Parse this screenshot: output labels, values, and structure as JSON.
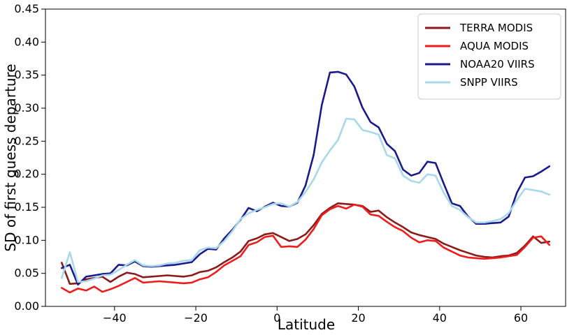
{
  "chart_data": {
    "type": "line",
    "title": "",
    "xlabel": "Latitude",
    "ylabel": "SD of first guess departure",
    "xlim": [
      -57,
      71
    ],
    "ylim": [
      0.0,
      0.45
    ],
    "xticks": [
      -40,
      -20,
      0,
      20,
      40,
      60
    ],
    "xtick_labels": [
      "−40",
      "−20",
      "0",
      "20",
      "40",
      "60"
    ],
    "yticks": [
      0.0,
      0.05,
      0.1,
      0.15,
      0.2,
      0.25,
      0.3,
      0.35,
      0.4,
      0.45
    ],
    "ytick_labels": [
      "0.00",
      "0.05",
      "0.10",
      "0.15",
      "0.20",
      "0.25",
      "0.30",
      "0.35",
      "0.40",
      "0.45"
    ],
    "grid": false,
    "legend_position": "top-right",
    "series": [
      {
        "name": "TERRA MODIS",
        "color": "#8b1a1a",
        "points": [
          [
            -53,
            0.066
          ],
          [
            -51,
            0.034
          ],
          [
            -49,
            0.035
          ],
          [
            -47,
            0.041
          ],
          [
            -45,
            0.043
          ],
          [
            -43,
            0.045
          ],
          [
            -41,
            0.037
          ],
          [
            -39,
            0.045
          ],
          [
            -37,
            0.051
          ],
          [
            -35,
            0.049
          ],
          [
            -33,
            0.044
          ],
          [
            -31,
            0.045
          ],
          [
            -29,
            0.046
          ],
          [
            -27,
            0.047
          ],
          [
            -25,
            0.046
          ],
          [
            -23,
            0.045
          ],
          [
            -21,
            0.047
          ],
          [
            -19,
            0.052
          ],
          [
            -17,
            0.054
          ],
          [
            -15,
            0.059
          ],
          [
            -13,
            0.067
          ],
          [
            -11,
            0.074
          ],
          [
            -9,
            0.083
          ],
          [
            -7,
            0.099
          ],
          [
            -5,
            0.103
          ],
          [
            -3,
            0.109
          ],
          [
            -1,
            0.111
          ],
          [
            1,
            0.105
          ],
          [
            3,
            0.099
          ],
          [
            5,
            0.102
          ],
          [
            7,
            0.109
          ],
          [
            9,
            0.123
          ],
          [
            11,
            0.14
          ],
          [
            13,
            0.149
          ],
          [
            15,
            0.156
          ],
          [
            17,
            0.155
          ],
          [
            19,
            0.154
          ],
          [
            21,
            0.152
          ],
          [
            23,
            0.143
          ],
          [
            25,
            0.145
          ],
          [
            27,
            0.135
          ],
          [
            29,
            0.127
          ],
          [
            31,
            0.12
          ],
          [
            33,
            0.112
          ],
          [
            35,
            0.108
          ],
          [
            37,
            0.105
          ],
          [
            39,
            0.102
          ],
          [
            41,
            0.095
          ],
          [
            43,
            0.09
          ],
          [
            45,
            0.085
          ],
          [
            47,
            0.081
          ],
          [
            49,
            0.077
          ],
          [
            51,
            0.075
          ],
          [
            53,
            0.074
          ],
          [
            55,
            0.076
          ],
          [
            57,
            0.077
          ],
          [
            59,
            0.081
          ],
          [
            61,
            0.092
          ],
          [
            63,
            0.106
          ],
          [
            65,
            0.096
          ],
          [
            67,
            0.098
          ]
        ]
      },
      {
        "name": "AQUA MODIS",
        "color": "#ee1c1c",
        "points": [
          [
            -53,
            0.028
          ],
          [
            -51,
            0.021
          ],
          [
            -49,
            0.027
          ],
          [
            -47,
            0.024
          ],
          [
            -45,
            0.03
          ],
          [
            -43,
            0.022
          ],
          [
            -41,
            0.026
          ],
          [
            -39,
            0.031
          ],
          [
            -37,
            0.037
          ],
          [
            -35,
            0.043
          ],
          [
            -33,
            0.036
          ],
          [
            -31,
            0.037
          ],
          [
            -29,
            0.038
          ],
          [
            -27,
            0.037
          ],
          [
            -25,
            0.036
          ],
          [
            -23,
            0.035
          ],
          [
            -21,
            0.036
          ],
          [
            -19,
            0.041
          ],
          [
            -17,
            0.044
          ],
          [
            -15,
            0.052
          ],
          [
            -13,
            0.062
          ],
          [
            -11,
            0.069
          ],
          [
            -9,
            0.076
          ],
          [
            -7,
            0.093
          ],
          [
            -5,
            0.097
          ],
          [
            -3,
            0.105
          ],
          [
            -1,
            0.107
          ],
          [
            1,
            0.09
          ],
          [
            3,
            0.091
          ],
          [
            5,
            0.09
          ],
          [
            7,
            0.101
          ],
          [
            9,
            0.117
          ],
          [
            11,
            0.138
          ],
          [
            13,
            0.147
          ],
          [
            15,
            0.152
          ],
          [
            17,
            0.148
          ],
          [
            19,
            0.154
          ],
          [
            21,
            0.151
          ],
          [
            23,
            0.139
          ],
          [
            25,
            0.137
          ],
          [
            27,
            0.128
          ],
          [
            29,
            0.12
          ],
          [
            31,
            0.114
          ],
          [
            33,
            0.104
          ],
          [
            35,
            0.097
          ],
          [
            37,
            0.1
          ],
          [
            39,
            0.099
          ],
          [
            41,
            0.089
          ],
          [
            43,
            0.083
          ],
          [
            45,
            0.077
          ],
          [
            47,
            0.074
          ],
          [
            49,
            0.073
          ],
          [
            51,
            0.072
          ],
          [
            53,
            0.073
          ],
          [
            55,
            0.074
          ],
          [
            57,
            0.076
          ],
          [
            59,
            0.078
          ],
          [
            61,
            0.09
          ],
          [
            63,
            0.104
          ],
          [
            65,
            0.106
          ],
          [
            67,
            0.093
          ]
        ]
      },
      {
        "name": "NOAA20 VIIRS",
        "color": "#1a1a8c",
        "points": [
          [
            -53,
            0.058
          ],
          [
            -51,
            0.063
          ],
          [
            -49,
            0.033
          ],
          [
            -47,
            0.045
          ],
          [
            -45,
            0.047
          ],
          [
            -43,
            0.049
          ],
          [
            -41,
            0.05
          ],
          [
            -39,
            0.063
          ],
          [
            -37,
            0.062
          ],
          [
            -35,
            0.068
          ],
          [
            -33,
            0.061
          ],
          [
            -31,
            0.06
          ],
          [
            -29,
            0.061
          ],
          [
            -27,
            0.062
          ],
          [
            -25,
            0.063
          ],
          [
            -23,
            0.065
          ],
          [
            -21,
            0.067
          ],
          [
            -19,
            0.079
          ],
          [
            -17,
            0.087
          ],
          [
            -15,
            0.086
          ],
          [
            -13,
            0.103
          ],
          [
            -11,
            0.116
          ],
          [
            -9,
            0.131
          ],
          [
            -7,
            0.149
          ],
          [
            -5,
            0.144
          ],
          [
            -3,
            0.151
          ],
          [
            -1,
            0.157
          ],
          [
            1,
            0.152
          ],
          [
            3,
            0.151
          ],
          [
            5,
            0.157
          ],
          [
            7,
            0.183
          ],
          [
            9,
            0.229
          ],
          [
            11,
            0.305
          ],
          [
            13,
            0.354
          ],
          [
            15,
            0.355
          ],
          [
            17,
            0.351
          ],
          [
            19,
            0.333
          ],
          [
            21,
            0.301
          ],
          [
            23,
            0.279
          ],
          [
            25,
            0.271
          ],
          [
            27,
            0.246
          ],
          [
            29,
            0.235
          ],
          [
            31,
            0.207
          ],
          [
            33,
            0.198
          ],
          [
            35,
            0.202
          ],
          [
            37,
            0.219
          ],
          [
            39,
            0.217
          ],
          [
            41,
            0.186
          ],
          [
            43,
            0.156
          ],
          [
            45,
            0.152
          ],
          [
            47,
            0.136
          ],
          [
            49,
            0.125
          ],
          [
            51,
            0.125
          ],
          [
            53,
            0.126
          ],
          [
            55,
            0.127
          ],
          [
            57,
            0.136
          ],
          [
            59,
            0.172
          ],
          [
            61,
            0.195
          ],
          [
            63,
            0.197
          ],
          [
            65,
            0.204
          ],
          [
            67,
            0.212
          ]
        ]
      },
      {
        "name": "SNPP VIIRS",
        "color": "#a8d8ea",
        "points": [
          [
            -53,
            0.043
          ],
          [
            -51,
            0.082
          ],
          [
            -49,
            0.037
          ],
          [
            -47,
            0.038
          ],
          [
            -45,
            0.042
          ],
          [
            -43,
            0.047
          ],
          [
            -41,
            0.048
          ],
          [
            -39,
            0.055
          ],
          [
            -37,
            0.063
          ],
          [
            -35,
            0.07
          ],
          [
            -33,
            0.062
          ],
          [
            -31,
            0.061
          ],
          [
            -29,
            0.062
          ],
          [
            -27,
            0.065
          ],
          [
            -25,
            0.066
          ],
          [
            -23,
            0.069
          ],
          [
            -21,
            0.07
          ],
          [
            -19,
            0.085
          ],
          [
            -17,
            0.089
          ],
          [
            -15,
            0.088
          ],
          [
            -13,
            0.099
          ],
          [
            -11,
            0.114
          ],
          [
            -9,
            0.132
          ],
          [
            -7,
            0.141
          ],
          [
            -5,
            0.146
          ],
          [
            -3,
            0.15
          ],
          [
            -1,
            0.155
          ],
          [
            1,
            0.156
          ],
          [
            3,
            0.151
          ],
          [
            5,
            0.158
          ],
          [
            7,
            0.173
          ],
          [
            9,
            0.192
          ],
          [
            11,
            0.218
          ],
          [
            13,
            0.236
          ],
          [
            15,
            0.252
          ],
          [
            17,
            0.284
          ],
          [
            19,
            0.283
          ],
          [
            21,
            0.267
          ],
          [
            23,
            0.264
          ],
          [
            25,
            0.26
          ],
          [
            27,
            0.229
          ],
          [
            29,
            0.224
          ],
          [
            31,
            0.198
          ],
          [
            33,
            0.19
          ],
          [
            35,
            0.187
          ],
          [
            37,
            0.2
          ],
          [
            39,
            0.198
          ],
          [
            41,
            0.172
          ],
          [
            43,
            0.152
          ],
          [
            45,
            0.146
          ],
          [
            47,
            0.135
          ],
          [
            49,
            0.127
          ],
          [
            51,
            0.127
          ],
          [
            53,
            0.129
          ],
          [
            55,
            0.132
          ],
          [
            57,
            0.141
          ],
          [
            59,
            0.161
          ],
          [
            61,
            0.178
          ],
          [
            63,
            0.176
          ],
          [
            65,
            0.174
          ],
          [
            67,
            0.169
          ]
        ]
      }
    ]
  }
}
